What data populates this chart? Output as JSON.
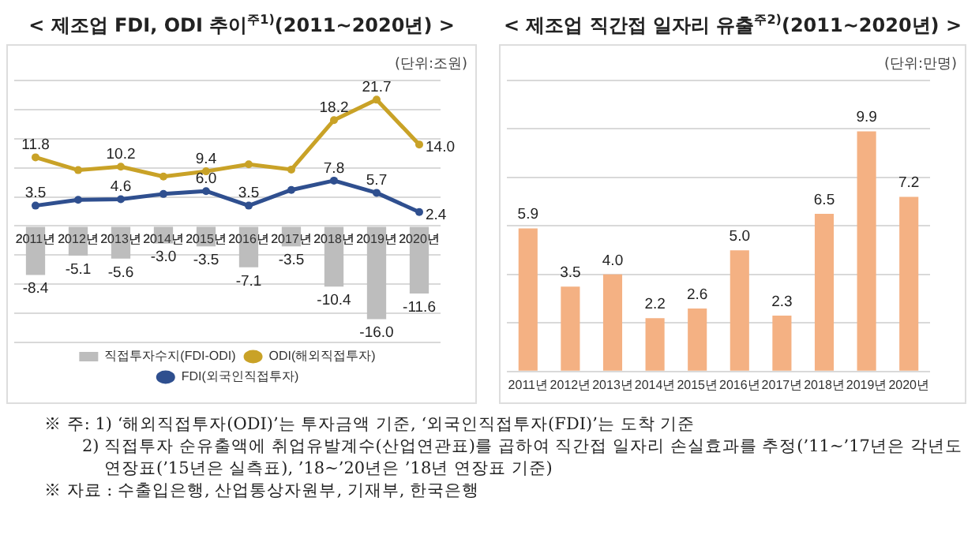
{
  "chart_data": [
    {
      "type": "bar",
      "title": "< 제조업 FDI, ODI 추이$^{주1)}$(2011~2020년) >",
      "annotations": [
        "(단위:조원)"
      ],
      "categories": [
        "2011년",
        "2012년",
        "2013년",
        "2014년",
        "2015년",
        "2016년",
        "2017년",
        "2018년",
        "2019년",
        "2020년"
      ],
      "series": [
        {
          "name": "직접투자수지(FDI-ODI)",
          "type": "bar",
          "color": "#bdbdbd",
          "values": [
            -8.4,
            -5.1,
            -5.6,
            -3.0,
            -3.5,
            -7.1,
            -3.5,
            -10.4,
            -16.0,
            -11.6
          ],
          "value_labels": [
            "-8.4",
            "-5.1",
            "-5.6",
            "-3.0",
            "-3.5",
            "-7.1",
            "-3.5",
            "-10.4",
            "-16.0",
            "-11.6"
          ]
        },
        {
          "name": "ODI(해외직접투자)",
          "type": "line",
          "color": "#c9a227",
          "values": [
            11.8,
            9.6,
            10.2,
            8.5,
            9.4,
            10.6,
            9.7,
            18.2,
            21.7,
            14.0
          ],
          "value_labels": [
            "11.8",
            null,
            "10.2",
            null,
            "9.4",
            null,
            null,
            "18.2",
            "21.7",
            "14.0"
          ]
        },
        {
          "name": "FDI(외국인직접투자)",
          "type": "line",
          "color": "#2f4f8f",
          "values": [
            3.5,
            4.5,
            4.6,
            5.5,
            6.0,
            3.5,
            6.2,
            7.8,
            5.7,
            2.4
          ],
          "value_labels": [
            "3.5",
            null,
            "4.6",
            null,
            "6.0",
            "3.5",
            null,
            "7.8",
            "5.7",
            "2.4"
          ]
        }
      ],
      "ylim": [
        -20,
        25
      ],
      "yticks": [
        {
          "value": -20,
          "label": null
        },
        {
          "value": -15,
          "label": null
        },
        {
          "value": -10,
          "label": null
        },
        {
          "value": -5,
          "label": null
        },
        {
          "value": 0,
          "label": null
        },
        {
          "value": 5,
          "label": null
        },
        {
          "value": 10,
          "label": null
        },
        {
          "value": 15,
          "label": null
        },
        {
          "value": 20,
          "label": null
        },
        {
          "value": 25,
          "label": null
        }
      ],
      "tick_labels": "x",
      "grid": "y",
      "legend": "bottom",
      "marker": "circle",
      "line_style": "solid"
    },
    {
      "type": "bar",
      "title": "< 제조업 직간접 일자리 유출$^{주2)}$(2011~2020년) >",
      "annotations": [
        "(단위:만명)"
      ],
      "categories": [
        "2011년",
        "2012년",
        "2013년",
        "2014년",
        "2015년",
        "2016년",
        "2017년",
        "2018년",
        "2019년",
        "2020년"
      ],
      "values": [
        5.9,
        3.5,
        4.0,
        2.2,
        2.6,
        5.0,
        2.3,
        6.5,
        9.9,
        7.2
      ],
      "value_labels": [
        "5.9",
        "3.5",
        "4.0",
        "2.2",
        "2.6",
        "5.0",
        "2.3",
        "6.5",
        "9.9",
        "7.2"
      ],
      "color": "#f4b183",
      "ylim": [
        0,
        12
      ],
      "yticks": [
        {
          "value": 0,
          "label": null
        },
        {
          "value": 2,
          "label": null
        },
        {
          "value": 4,
          "label": null
        },
        {
          "value": 6,
          "label": null
        },
        {
          "value": 8,
          "label": null
        },
        {
          "value": 10,
          "label": null
        },
        {
          "value": 12,
          "label": null
        }
      ],
      "tick_labels": "x",
      "grid": "y",
      "legend": false
    },
    {
      "type": "other",
      "annotations": [
        "※ 주: 1) ‘해외직접투자(ODI)’는 투자금액 기준, ‘외국인직접투자(FDI)’는 도착 기준",
        "2) 직접투자 순유출액에 취업유발계수(산업연관표)를 곱하여 직간접 일자리 손실효과를 추정(’11~’17년은 각년도 연장표(’15년은 실측표), ’18~’20년은 ’18년 연장표 기준)",
        "※ 자료 : 수출입은행, 산업통상자원부, 기재부, 한국은행"
      ]
    }
  ]
}
